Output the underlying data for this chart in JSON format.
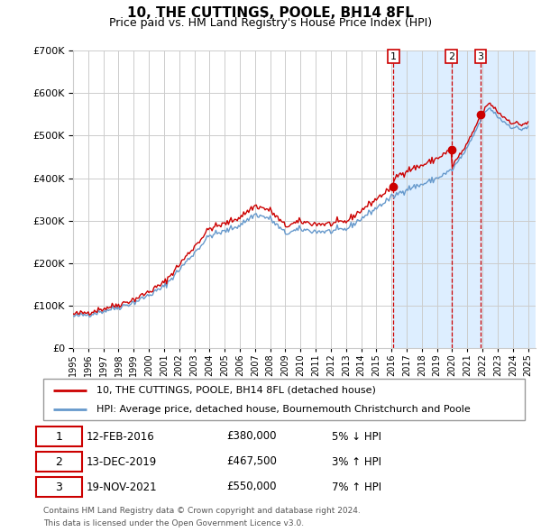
{
  "title": "10, THE CUTTINGS, POOLE, BH14 8FL",
  "subtitle": "Price paid vs. HM Land Registry's House Price Index (HPI)",
  "legend_line1": "10, THE CUTTINGS, POOLE, BH14 8FL (detached house)",
  "legend_line2": "HPI: Average price, detached house, Bournemouth Christchurch and Poole",
  "footer1": "Contains HM Land Registry data © Crown copyright and database right 2024.",
  "footer2": "This data is licensed under the Open Government Licence v3.0.",
  "sales": [
    {
      "label": "1",
      "date": "12-FEB-2016",
      "price": 380000,
      "pct": "5%",
      "dir": "↓",
      "year": 2016.12
    },
    {
      "label": "2",
      "date": "13-DEC-2019",
      "price": 467500,
      "pct": "3%",
      "dir": "↑",
      "year": 2019.96
    },
    {
      "label": "3",
      "date": "19-NOV-2021",
      "price": 550000,
      "pct": "7%",
      "dir": "↑",
      "year": 2021.88
    }
  ],
  "hpi_color": "#6699cc",
  "price_color": "#cc0000",
  "sale_dot_color": "#cc0000",
  "shade_color": "#ddeeff",
  "chart_bg": "#ffffff",
  "grid_color": "#cccccc",
  "ylim": [
    0,
    700000
  ],
  "yticks": [
    0,
    100000,
    200000,
    300000,
    400000,
    500000,
    600000,
    700000
  ],
  "xmin": 1995,
  "xmax": 2025.5,
  "hpi_anchors_years": [
    1995,
    1996,
    1997,
    1998,
    1999,
    2000,
    2001,
    2002,
    2003,
    2004,
    2005,
    2006,
    2007,
    2008,
    2009,
    2010,
    2011,
    2012,
    2013,
    2014,
    2015,
    2016,
    2017,
    2018,
    2019,
    2020,
    2021,
    2022,
    2022.5,
    2023,
    2023.5,
    2024,
    2024.5,
    2025
  ],
  "hpi_anchors_vals": [
    75000,
    80000,
    88000,
    97000,
    108000,
    125000,
    145000,
    185000,
    225000,
    265000,
    275000,
    290000,
    315000,
    305000,
    270000,
    280000,
    275000,
    275000,
    280000,
    305000,
    330000,
    355000,
    375000,
    385000,
    400000,
    420000,
    470000,
    545000,
    565000,
    545000,
    530000,
    520000,
    515000,
    520000
  ]
}
